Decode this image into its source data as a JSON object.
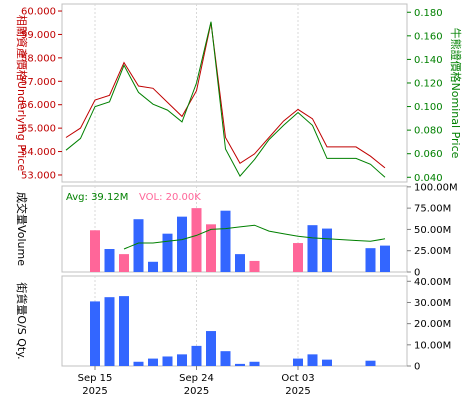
{
  "colors": {
    "underlying": "#c00000",
    "nominal": "#008000",
    "volume_up": "#3366ff",
    "volume_down": "#ff6699",
    "avg_line": "#008000",
    "frame": "#c0c0c0",
    "grid": "#d8d8d8"
  },
  "price_panel": {
    "left_label": "相關資產價格Underlying Price",
    "right_label": "牛熊證價格Nominal Price"
  },
  "volume_panel": {
    "label": "成交量Volume",
    "avg_text": "Avg: 39.12M",
    "vol_text": "VOL: 20.00K"
  },
  "outstanding_panel": {
    "label": "街貨量O/S Qty."
  },
  "x_axis": {
    "ticks": [
      {
        "day": "Sep 15",
        "year": "2025",
        "index": 2
      },
      {
        "day": "Sep 24",
        "year": "2025",
        "index": 9
      },
      {
        "day": "Oct 03",
        "year": "2025",
        "index": 16
      }
    ]
  },
  "chart_data": [
    {
      "type": "line",
      "title": "",
      "n": 23,
      "ylabel_left": "相關資產價格Underlying Price",
      "ylabel_right": "牛熊證價格Nominal Price",
      "ylim_left": [
        52.7,
        60.3
      ],
      "ylim_right": [
        0.036,
        0.187
      ],
      "left_ticks": [
        "53.000",
        "54.000",
        "55.000",
        "56.000",
        "57.000",
        "58.000",
        "59.000",
        "60.000"
      ],
      "right_ticks": [
        "0.040",
        "0.060",
        "0.080",
        "0.100",
        "0.120",
        "0.140",
        "0.160",
        "0.180"
      ],
      "series": [
        {
          "name": "Underlying Price",
          "axis": "left",
          "values": [
            54.6,
            55.0,
            56.2,
            56.4,
            57.8,
            56.8,
            56.7,
            56.1,
            55.5,
            56.6,
            59.5,
            54.6,
            53.5,
            53.9,
            54.6,
            55.3,
            55.8,
            55.4,
            54.2,
            54.2,
            54.2,
            53.8,
            53.3
          ]
        },
        {
          "name": "Nominal Price",
          "axis": "right",
          "values": [
            0.063,
            0.073,
            0.1,
            0.104,
            0.135,
            0.112,
            0.102,
            0.097,
            0.087,
            0.12,
            0.172,
            0.064,
            0.041,
            0.055,
            0.072,
            0.084,
            0.095,
            0.084,
            0.056,
            0.056,
            0.056,
            0.051,
            0.04
          ]
        }
      ]
    },
    {
      "type": "bar",
      "title": "",
      "n": 23,
      "ylabel": "成交量Volume",
      "ylim": [
        0,
        101
      ],
      "ticks": [
        "0",
        "25.00M",
        "50.00M",
        "75.00M",
        "100.00M"
      ],
      "avg_label": "Avg: 39.12M",
      "vol_label": "VOL: 20.00K",
      "values": [
        0,
        0,
        49,
        27,
        21,
        62,
        12,
        45,
        65,
        75,
        56,
        72,
        21,
        13,
        0,
        0,
        34,
        55,
        51,
        0,
        0,
        28,
        31
      ],
      "colors": [
        "none",
        "none",
        "down",
        "up",
        "down",
        "up",
        "up",
        "up",
        "up",
        "down",
        "down",
        "up",
        "up",
        "down",
        "none",
        "none",
        "down",
        "up",
        "up",
        "none",
        "none",
        "up",
        "up"
      ],
      "avg_values": [
        null,
        null,
        null,
        null,
        27,
        34,
        34,
        36,
        38,
        43,
        50,
        51,
        53,
        55,
        48,
        45,
        42,
        40,
        39,
        38,
        37,
        36,
        39
      ]
    },
    {
      "type": "bar",
      "title": "",
      "n": 23,
      "ylabel": "街貨量O/S Qty.",
      "ylim": [
        0,
        42.5
      ],
      "ticks": [
        "0",
        "10.00M",
        "20.00M",
        "30.00M",
        "40.00M"
      ],
      "values": [
        0,
        0,
        30.5,
        32.5,
        33,
        2,
        3.5,
        4.5,
        5.5,
        9.5,
        16.5,
        7,
        1,
        2,
        0,
        0,
        3.5,
        5.5,
        3,
        0,
        0,
        2.5,
        0
      ]
    }
  ]
}
